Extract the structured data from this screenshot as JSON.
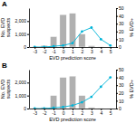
{
  "chart_data": [
    {
      "type": "bar",
      "title": "A",
      "xlabel": "EVD prediction score",
      "ylabel": "No. EVD\nsuspects",
      "y2label": "% EVD+",
      "x": [
        -3,
        -2,
        -1,
        0,
        1,
        2,
        3,
        4,
        5
      ],
      "xlim": [
        -3.6,
        5.6
      ],
      "xticks": [
        -3,
        -2,
        -1,
        0,
        1,
        2,
        3,
        4,
        5
      ],
      "ylim": [
        0,
        3000
      ],
      "yticks": [
        0,
        {
          "value": 1000,
          "label": "1,000"
        },
        {
          "value": 2000,
          "label": "2,000"
        }
      ],
      "y2lim": [
        0,
        50
      ],
      "y2ticks": [
        0,
        10,
        20,
        30,
        40,
        50
      ],
      "series": [
        {
          "type": "bar",
          "color": "#b0b0b0",
          "values": [
            30,
            120,
            800,
            2500,
            2600,
            1000,
            100,
            20,
            5
          ]
        },
        {
          "type": "line",
          "color": "#00b4d8",
          "marker": "circle",
          "axis": "y2",
          "values": [
            0,
            0,
            1,
            2,
            5,
            20,
            25,
            10,
            2
          ]
        }
      ]
    },
    {
      "type": "bar",
      "title": "B",
      "xlabel": "EVD prediction score",
      "ylabel": "No. EVD\nsuspects",
      "y2label": "% EVD+",
      "x": [
        -3,
        -2,
        -1,
        0,
        1,
        2,
        3,
        4,
        5
      ],
      "xlim": [
        -3.6,
        5.6
      ],
      "xticks": [
        -3,
        -2,
        -1,
        0,
        1,
        2,
        3,
        4,
        5
      ],
      "ylim": [
        0,
        3000
      ],
      "yticks": [
        0,
        {
          "value": 1000,
          "label": "1,000"
        },
        {
          "value": 2000,
          "label": "2,000"
        }
      ],
      "y2lim": [
        0,
        50
      ],
      "y2ticks": [
        0,
        10,
        20,
        30,
        40,
        50
      ],
      "series": [
        {
          "type": "bar",
          "color": "#b0b0b0",
          "values": [
            30,
            80,
            1000,
            2400,
            2500,
            1000,
            80,
            20,
            5
          ]
        },
        {
          "type": "line",
          "color": "#00b4d8",
          "marker": "circle",
          "axis": "y2",
          "values": [
            0,
            0,
            1,
            2,
            4,
            8,
            15,
            28,
            40
          ]
        }
      ]
    }
  ]
}
